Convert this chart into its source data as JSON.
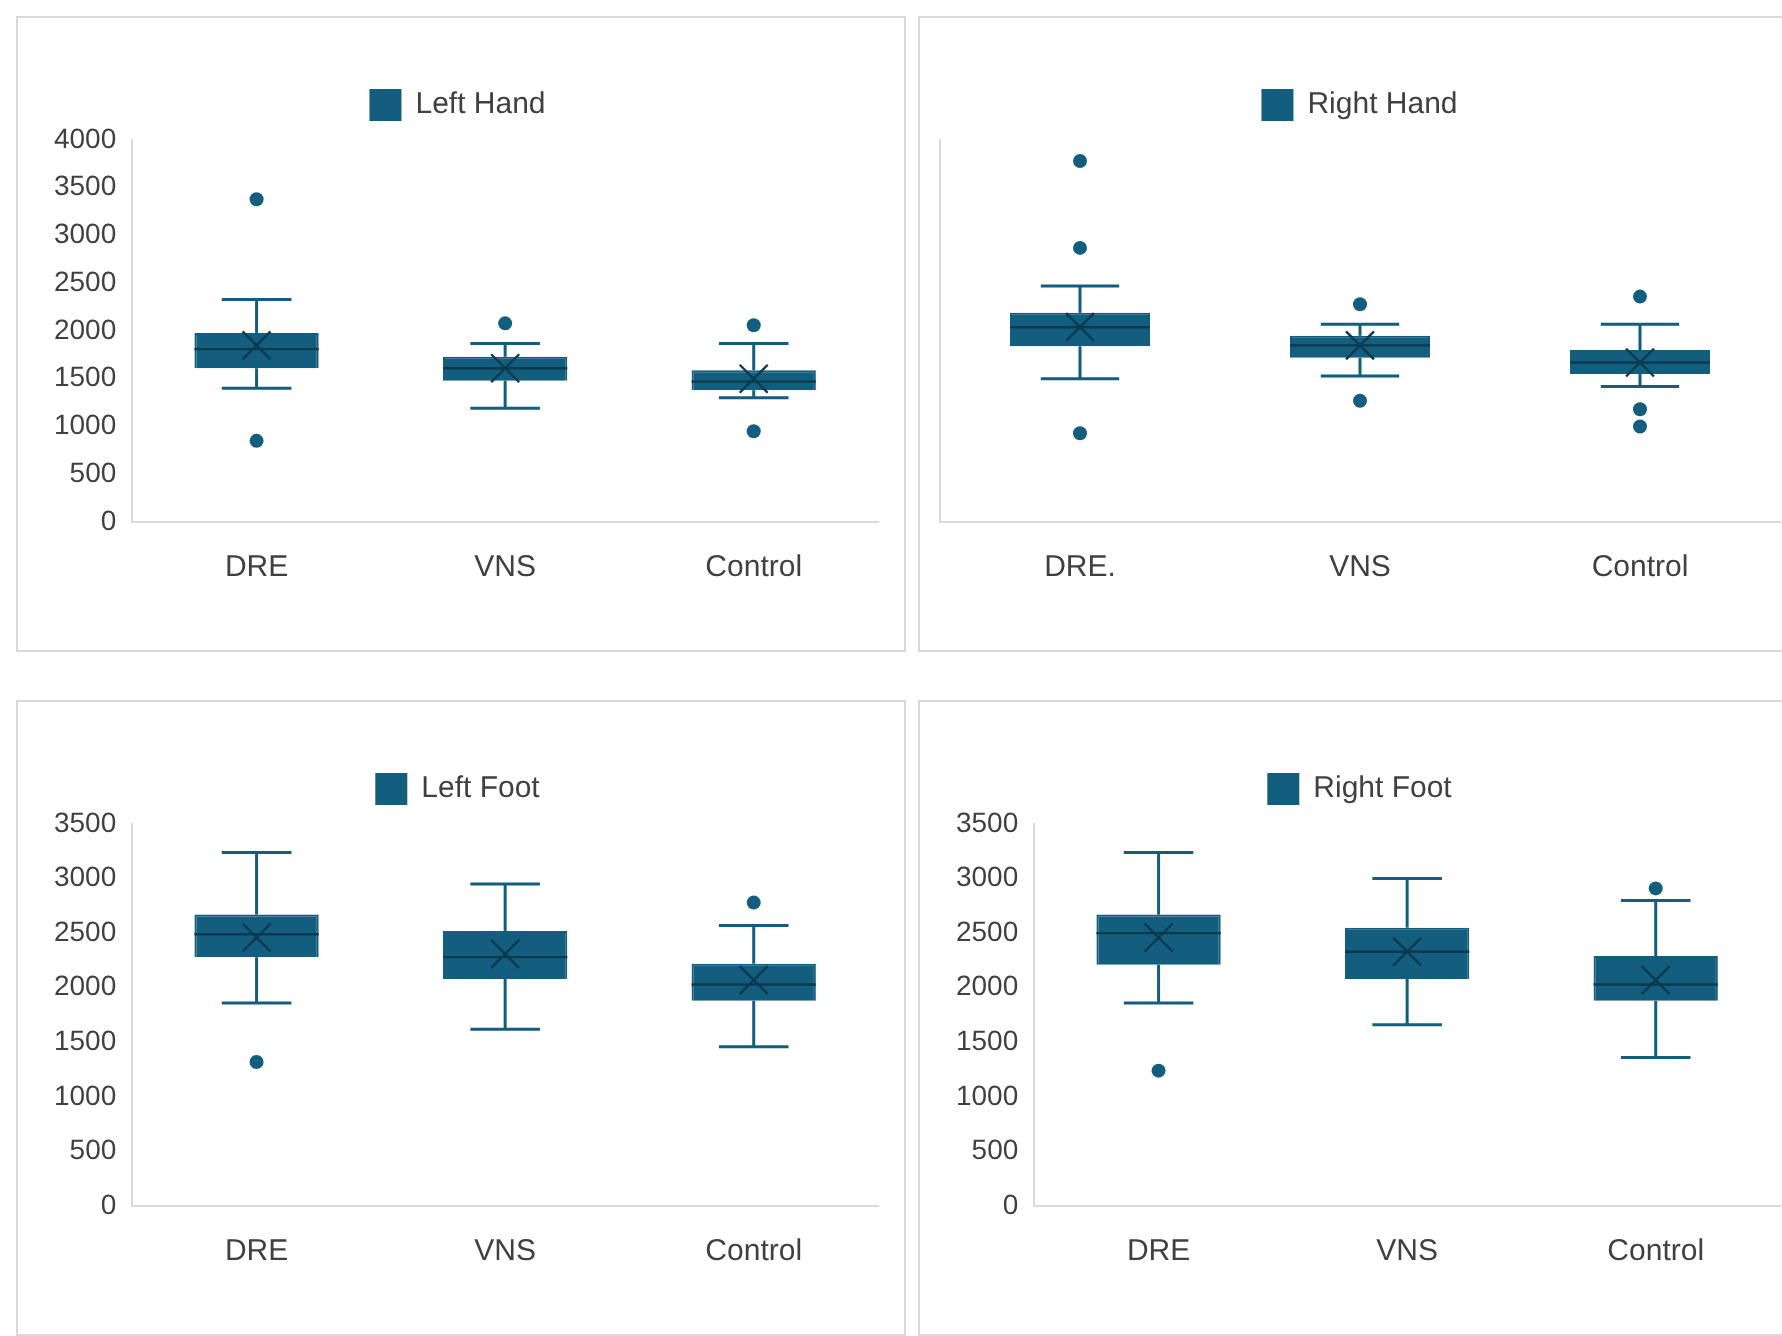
{
  "chart_data": [
    {
      "type": "box",
      "categories": [
        "DRE",
        "VNS",
        "Control"
      ],
      "ylim": [
        0,
        4000
      ],
      "yticks": [
        0,
        500,
        1000,
        1500,
        2000,
        2500,
        3000,
        3500,
        4000
      ],
      "legend": "top",
      "series": [
        {
          "name": "Left Hand",
          "color": "#135e7e",
          "boxes": [
            {
              "low": 1400,
              "q1": 1610,
              "median": 1810,
              "q3": 1980,
              "high": 2330,
              "mean": 1850,
              "outliers": [
                3380,
                850
              ]
            },
            {
              "low": 1190,
              "q1": 1480,
              "median": 1610,
              "q3": 1730,
              "high": 1870,
              "mean": 1610,
              "outliers": [
                2080
              ]
            },
            {
              "low": 1300,
              "q1": 1380,
              "median": 1470,
              "q3": 1590,
              "high": 1870,
              "mean": 1500,
              "outliers": [
                2060,
                950
              ]
            }
          ]
        }
      ]
    },
    {
      "type": "box",
      "categories": [
        "DRE.",
        "VNS",
        "Control"
      ],
      "ylim": [
        0,
        4000
      ],
      "tick_labels": "x",
      "legend": "top",
      "series": [
        {
          "name": "Right Hand",
          "color": "#135e7e",
          "boxes": [
            {
              "low": 1500,
              "q1": 1840,
              "median": 2040,
              "q3": 2190,
              "high": 2470,
              "mean": 2040,
              "outliers": [
                3780,
                2870,
                930
              ]
            },
            {
              "low": 1530,
              "q1": 1720,
              "median": 1850,
              "q3": 1950,
              "high": 2070,
              "mean": 1850,
              "outliers": [
                2280,
                1270
              ]
            },
            {
              "low": 1420,
              "q1": 1550,
              "median": 1670,
              "q3": 1800,
              "high": 2070,
              "mean": 1670,
              "outliers": [
                2360,
                1180,
                1000
              ]
            }
          ]
        }
      ]
    },
    {
      "type": "box",
      "categories": [
        "DRE",
        "VNS",
        "Control"
      ],
      "ylim": [
        0,
        3500
      ],
      "yticks": [
        0,
        500,
        1000,
        1500,
        2000,
        2500,
        3000,
        3500
      ],
      "legend": "top",
      "series": [
        {
          "name": "Left Foot",
          "color": "#135e7e",
          "boxes": [
            {
              "low": 1860,
              "q1": 2280,
              "median": 2490,
              "q3": 2670,
              "high": 3240,
              "mean": 2460,
              "outliers": [
                1320
              ]
            },
            {
              "low": 1620,
              "q1": 2080,
              "median": 2280,
              "q3": 2520,
              "high": 2950,
              "mean": 2310
            },
            {
              "low": 1460,
              "q1": 1880,
              "median": 2030,
              "q3": 2220,
              "high": 2570,
              "mean": 2070,
              "outliers": [
                2780
              ]
            }
          ]
        }
      ]
    },
    {
      "type": "box",
      "categories": [
        "DRE",
        "VNS",
        "Control"
      ],
      "ylim": [
        0,
        3500
      ],
      "yticks": [
        0,
        500,
        1000,
        1500,
        2000,
        2500,
        3000,
        3500
      ],
      "legend": "top",
      "series": [
        {
          "name": "Right Foot",
          "color": "#135e7e",
          "boxes": [
            {
              "low": 1860,
              "q1": 2210,
              "median": 2500,
              "q3": 2670,
              "high": 3240,
              "mean": 2460,
              "outliers": [
                1240
              ]
            },
            {
              "low": 1660,
              "q1": 2080,
              "median": 2330,
              "q3": 2550,
              "high": 3000,
              "mean": 2330
            },
            {
              "low": 1360,
              "q1": 1880,
              "median": 2030,
              "q3": 2290,
              "high": 2800,
              "mean": 2070,
              "outliers": [
                2910
              ]
            }
          ]
        }
      ]
    }
  ]
}
